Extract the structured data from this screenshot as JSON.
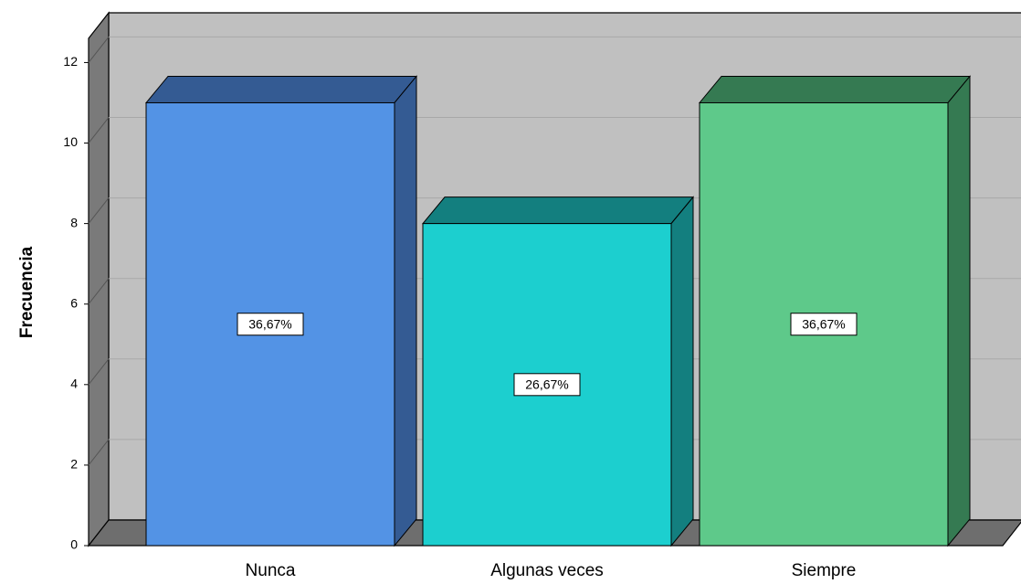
{
  "chart_data": {
    "type": "bar3d",
    "y_label": "Frecuencia",
    "categories": [
      "Nunca",
      "Algunas veces",
      "Siempre"
    ],
    "values": [
      11,
      8,
      11
    ],
    "percentages": [
      36.67,
      26.67,
      36.67
    ],
    "value_labels": [
      "36,67%",
      "26,67%",
      "36,67%"
    ],
    "colors": [
      "#5393e5",
      "#1ccfcf",
      "#5ec98a"
    ],
    "shade_colors": [
      "#345b93",
      "#137f7f",
      "#357a52"
    ],
    "ylim": [
      0,
      12.6
    ],
    "yticks": [
      0,
      2,
      4,
      6,
      8,
      10,
      12
    ],
    "grid": true
  }
}
